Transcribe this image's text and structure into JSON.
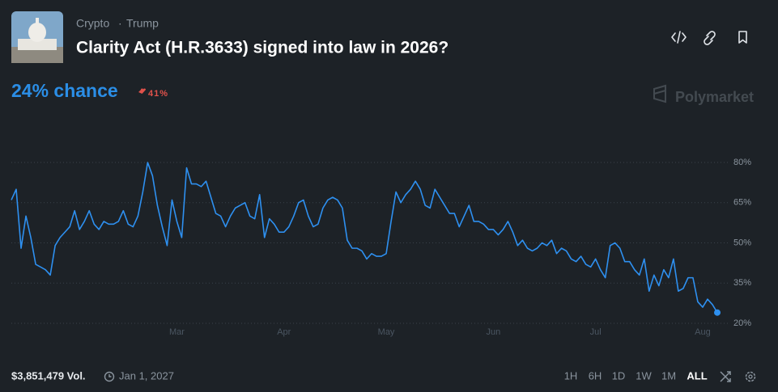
{
  "header": {
    "tags": [
      "Crypto",
      "Trump"
    ],
    "title": "Clarity Act (H.R.3633) signed into law in 2026?"
  },
  "chance": "24% chance",
  "change": "41%",
  "brand": "Polymarket",
  "footer": {
    "volume": "$3,851,479 Vol.",
    "end_date": "Jan 1, 2027",
    "ranges": [
      "1H",
      "6H",
      "1D",
      "1W",
      "1M",
      "ALL"
    ]
  },
  "chart_data": {
    "type": "line",
    "categories": [
      null,
      null,
      null,
      null,
      null,
      null,
      null,
      null,
      null,
      null,
      null,
      null,
      null,
      null,
      null,
      null,
      null,
      null,
      null,
      null,
      null,
      null,
      null,
      null,
      null,
      null,
      null,
      null,
      null,
      null,
      null,
      null,
      null,
      null,
      "Mar",
      null,
      null,
      null,
      null,
      null,
      null,
      null,
      null,
      null,
      null,
      null,
      null,
      null,
      null,
      null,
      null,
      null,
      null,
      null,
      null,
      null,
      "Apr",
      null,
      null,
      null,
      null,
      null,
      null,
      null,
      null,
      null,
      null,
      null,
      null,
      null,
      null,
      null,
      null,
      null,
      null,
      null,
      null,
      "May",
      null,
      null,
      null,
      null,
      null,
      null,
      null,
      null,
      null,
      null,
      null,
      null,
      null,
      null,
      null,
      null,
      null,
      null,
      null,
      null,
      null,
      "Jun",
      null,
      null,
      null,
      null,
      null,
      null,
      null,
      null,
      null,
      null,
      null,
      null,
      null,
      null,
      null,
      null,
      null,
      null,
      null,
      null,
      "Jul",
      null,
      null,
      null,
      null,
      null,
      null,
      null,
      null,
      null,
      null,
      null,
      null,
      null,
      null,
      null,
      null,
      null,
      null,
      null,
      null,
      null,
      "Aug",
      null,
      null,
      null
    ],
    "values": [
      66,
      70,
      48,
      60,
      52,
      42,
      41,
      40,
      38,
      49,
      52,
      54,
      56,
      62,
      55,
      58,
      62,
      57,
      55,
      58,
      57,
      57,
      58,
      62,
      57,
      56,
      60,
      69,
      80,
      75,
      64,
      56,
      49,
      66,
      58,
      52,
      78,
      72,
      72,
      71,
      73,
      67,
      61,
      60,
      56,
      60,
      63,
      64,
      65,
      60,
      59,
      68,
      52,
      59,
      57,
      54,
      54,
      56,
      60,
      65,
      66,
      60,
      56,
      57,
      63,
      66,
      67,
      66,
      63,
      51,
      48,
      48,
      47,
      44,
      46,
      45,
      45,
      46,
      58,
      69,
      65,
      68,
      70,
      73,
      70,
      64,
      63,
      70,
      67,
      64,
      61,
      61,
      56,
      60,
      64,
      58,
      58,
      57,
      55,
      55,
      53,
      55,
      58,
      54,
      49,
      51,
      48,
      47,
      48,
      50,
      49,
      51,
      46,
      48,
      47,
      44,
      43,
      45,
      42,
      41,
      44,
      40,
      37,
      49,
      50,
      48,
      43,
      43,
      40,
      38,
      44,
      32,
      38,
      34,
      40,
      37,
      44,
      32,
      33,
      37,
      37,
      28,
      26,
      29,
      27,
      24
    ],
    "color": "#2e90f0",
    "ylim": [
      14,
      92
    ],
    "yticks": [
      {
        "value": 20,
        "label": "20%"
      },
      {
        "value": 35,
        "label": "35%"
      },
      {
        "value": 50,
        "label": "50%"
      },
      {
        "value": 65,
        "label": "65%"
      },
      {
        "value": 80,
        "label": "80%"
      }
    ],
    "grid": true
  }
}
